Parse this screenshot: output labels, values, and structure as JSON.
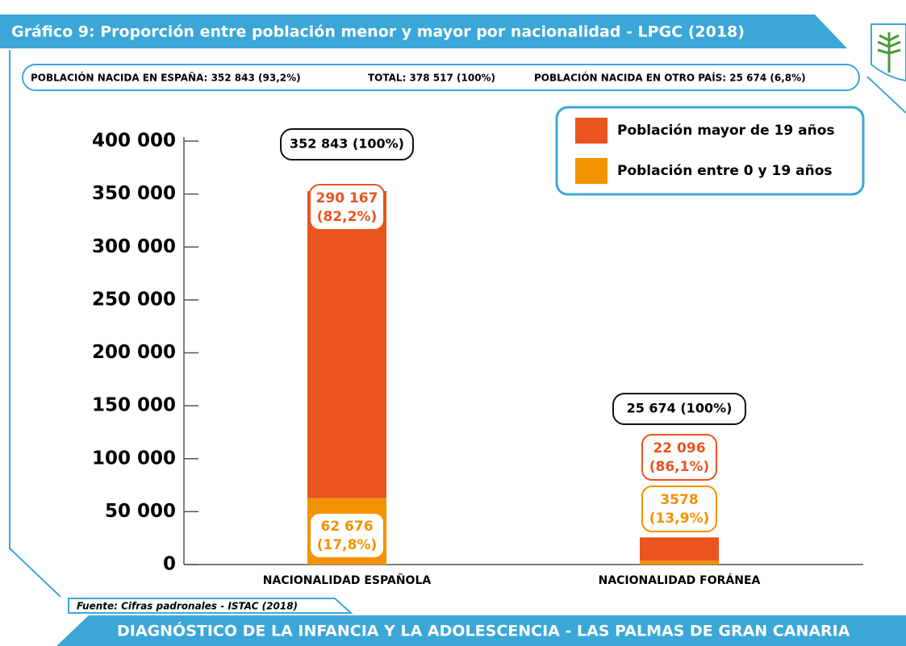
{
  "chart_data": {
    "type": "stacked_bar",
    "title": "Gráfico 9: Proporción entre población menor y mayor por nacionalidad - LPGC (2018)",
    "summary": [
      "POBLACIÓN NACIDA EN ESPAÑA: 352 843 (93,2%)",
      "TOTAL: 378 517 (100%)",
      "POBLACIÓN NACIDA EN OTRO PAÍS: 25 674 (6,8%)"
    ],
    "categories": [
      "NACIONALIDAD ESPAÑOLA",
      "NACIONALIDAD FORÁNEA"
    ],
    "series": [
      {
        "name": "Población entre 0 y 19 años",
        "color": "#f39200",
        "values": [
          62676,
          3578
        ],
        "value_labels": [
          [
            "62 676",
            "(17,8%)"
          ],
          [
            "3578",
            "(13,9%)"
          ]
        ]
      },
      {
        "name": "Población mayor de 19 años",
        "color": "#e9541f",
        "values": [
          290167,
          22096
        ],
        "value_labels": [
          [
            "290 167",
            "(82,2%)"
          ],
          [
            "22 096",
            "(86,1%)"
          ]
        ]
      }
    ],
    "total_labels": [
      "352 843 (100%)",
      "25 674 (100%)"
    ],
    "ylim": [
      0,
      400000
    ],
    "yticks": [
      0,
      {
        "value": 50000,
        "label": "50 000"
      },
      {
        "value": 100000,
        "label": "100 000"
      },
      {
        "value": 150000,
        "label": "150 000"
      },
      {
        "value": 200000,
        "label": "200 000"
      },
      {
        "value": 250000,
        "label": "250 000"
      },
      {
        "value": 300000,
        "label": "300 000"
      },
      {
        "value": 350000,
        "label": "350 000"
      },
      {
        "value": 400000,
        "label": "400 000"
      }
    ],
    "source": "Fuente: Cifras padronales -  ISTAC (2018)",
    "footer": "DIAGNÓSTICO DE LA INFANCIA Y LA ADOLESCENCIA - LAS PALMAS DE GRAN CANARIA"
  }
}
